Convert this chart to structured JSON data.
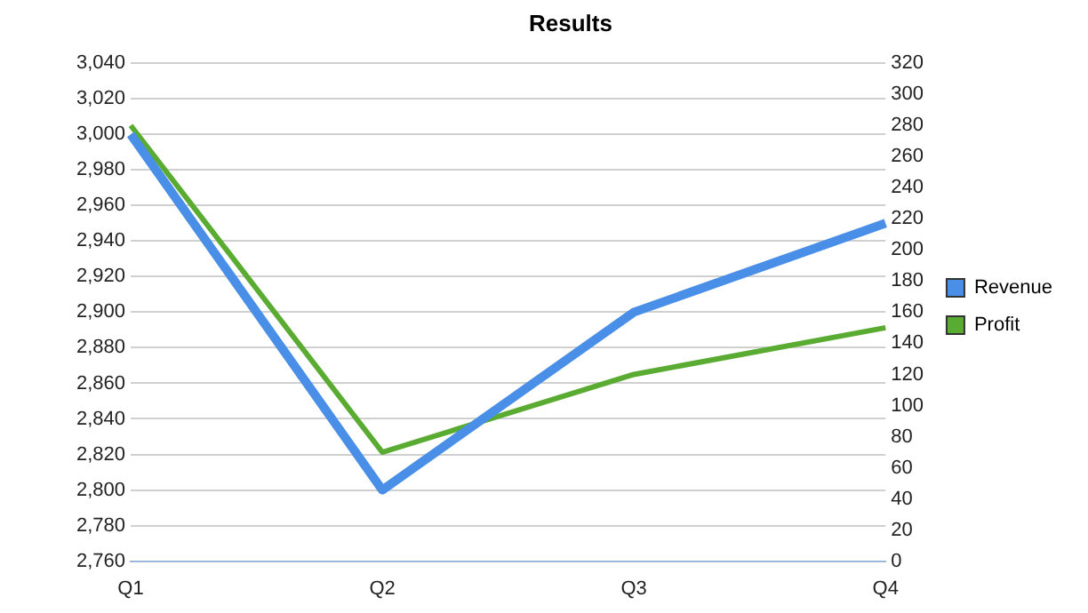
{
  "chart_data": {
    "type": "line",
    "title": "Results",
    "categories": [
      "Q1",
      "Q2",
      "Q3",
      "Q4"
    ],
    "series": [
      {
        "name": "Revenue",
        "color": "#4a8fe7",
        "values": [
          3000,
          2800,
          2900,
          2950
        ]
      },
      {
        "name": "Profit",
        "color": "#5aab32",
        "values": [
          280,
          70,
          120,
          150
        ],
        "axis": "y2"
      }
    ],
    "ylim": [
      2760,
      3040
    ],
    "yticks": [
      {
        "value": 2760,
        "label": "2,760"
      },
      {
        "value": 2780,
        "label": "2,780"
      },
      {
        "value": 2800,
        "label": "2,800"
      },
      {
        "value": 2820,
        "label": "2,820"
      },
      {
        "value": 2840,
        "label": "2,840"
      },
      {
        "value": 2860,
        "label": "2,860"
      },
      {
        "value": 2880,
        "label": "2,880"
      },
      {
        "value": 2900,
        "label": "2,900"
      },
      {
        "value": 2920,
        "label": "2,920"
      },
      {
        "value": 2940,
        "label": "2,940"
      },
      {
        "value": 2960,
        "label": "2,960"
      },
      {
        "value": 2980,
        "label": "2,980"
      },
      {
        "value": 3000,
        "label": "3,000"
      },
      {
        "value": 3020,
        "label": "3,020"
      },
      {
        "value": 3040,
        "label": "3,040"
      }
    ],
    "y2lim": [
      0,
      320
    ],
    "y2ticks": [
      0,
      20,
      40,
      60,
      80,
      100,
      120,
      140,
      160,
      180,
      200,
      220,
      240,
      260,
      280,
      300,
      320
    ],
    "grid": "y",
    "legend": "right",
    "marker": "none",
    "line_style": "solid"
  }
}
